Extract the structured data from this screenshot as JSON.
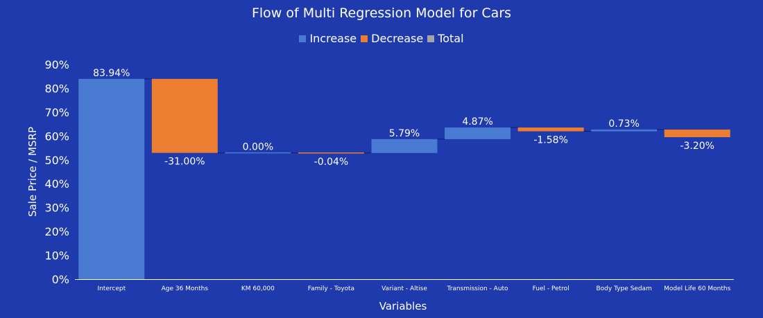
{
  "colors": {
    "background": "#1f3aad",
    "increase": "#4a7bd3",
    "decrease": "#ed7d31",
    "total": "#a5a5a5",
    "connector": "#0f1f5e",
    "axis": "#ffffff"
  },
  "chart_data": {
    "type": "waterfall",
    "title": "Flow of Multi Regression Model for Cars",
    "xlabel": "Variables",
    "ylabel": "Sale Price / MSRP",
    "ylim": [
      0,
      90
    ],
    "yticks": [
      0,
      10,
      20,
      30,
      40,
      50,
      60,
      70,
      80,
      90
    ],
    "ytick_labels": [
      "0%",
      "10%",
      "20%",
      "30%",
      "40%",
      "50%",
      "60%",
      "70%",
      "80%",
      "90%"
    ],
    "grid": false,
    "legend": {
      "position": "top-center",
      "entries": [
        "Increase",
        "Decrease",
        "Total"
      ]
    },
    "categories": [
      "Intercept",
      "Age 36 Months",
      "KM 60,000",
      "Family - Toyota",
      "Variant - Altise",
      "Transmission - Auto",
      "Fuel - Petrol",
      "Body Type Sedam",
      "Model Life 60 Months"
    ],
    "values": [
      83.94,
      -31.0,
      0.0,
      -0.04,
      5.79,
      4.87,
      -1.58,
      0.73,
      -3.2
    ],
    "value_labels": [
      "83.94%",
      "-31.00%",
      "0.00%",
      "-0.04%",
      "5.79%",
      "4.87%",
      "-1.58%",
      "0.73%",
      "-3.20%"
    ]
  }
}
